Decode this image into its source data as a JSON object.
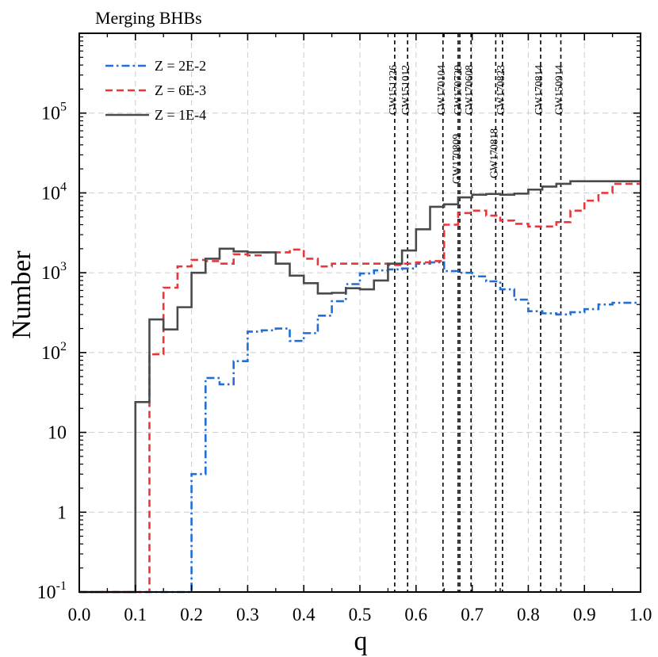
{
  "chart_data": {
    "type": "line",
    "title": "Merging BHBs",
    "xlabel": "q",
    "ylabel": "Number",
    "xlim": [
      0.0,
      1.0
    ],
    "ylim": [
      0.1,
      1000000
    ],
    "yscale": "log",
    "grid": true,
    "legend_position": "top-left",
    "xticks": [
      "0.0",
      "0.1",
      "0.2",
      "0.3",
      "0.4",
      "0.5",
      "0.6",
      "0.7",
      "0.8",
      "0.9",
      "1.0"
    ],
    "yticks": [
      {
        "value": 0.1,
        "base": "10",
        "exp": "-1"
      },
      {
        "value": 1,
        "base": "1",
        "exp": ""
      },
      {
        "value": 10,
        "base": "10",
        "exp": ""
      },
      {
        "value": 100,
        "base": "10",
        "exp": "2"
      },
      {
        "value": 1000,
        "base": "10",
        "exp": "3"
      },
      {
        "value": 10000,
        "base": "10",
        "exp": "4"
      },
      {
        "value": 100000,
        "base": "10",
        "exp": "5"
      }
    ],
    "bin_edges": [
      0.0,
      0.025,
      0.05,
      0.075,
      0.1,
      0.125,
      0.15,
      0.175,
      0.2,
      0.225,
      0.25,
      0.275,
      0.3,
      0.325,
      0.35,
      0.375,
      0.4,
      0.425,
      0.45,
      0.475,
      0.5,
      0.525,
      0.55,
      0.575,
      0.6,
      0.625,
      0.65,
      0.675,
      0.7,
      0.725,
      0.75,
      0.775,
      0.8,
      0.825,
      0.85,
      0.875,
      0.9,
      0.925,
      0.95,
      0.975,
      1.0
    ],
    "series": [
      {
        "name": "Z = 2E-2",
        "color": "#1f6fd6",
        "dash": "dashdot",
        "values": [
          0.1,
          0.1,
          0.1,
          0.1,
          0.1,
          0.1,
          0.1,
          0.1,
          3,
          48,
          40,
          78,
          183,
          190,
          200,
          140,
          175,
          290,
          440,
          720,
          980,
          1070,
          1100,
          1130,
          1300,
          1350,
          1050,
          1000,
          900,
          780,
          620,
          460,
          330,
          310,
          300,
          320,
          350,
          400,
          420,
          420
        ]
      },
      {
        "name": "Z = 6E-3",
        "color": "#e8363a",
        "dash": "dashed",
        "values": [
          0.1,
          0.1,
          0.1,
          0.1,
          0.1,
          95,
          650,
          1200,
          1450,
          1400,
          1300,
          1700,
          1650,
          1800,
          1800,
          1950,
          1500,
          1200,
          1300,
          1300,
          1300,
          1300,
          1250,
          1300,
          1350,
          1400,
          4000,
          5600,
          6000,
          5200,
          4500,
          4100,
          3800,
          3800,
          4300,
          6000,
          8000,
          10000,
          13000,
          13000
        ]
      },
      {
        "name": "Z = 1E-4",
        "color": "#4a4a4a",
        "dash": "solid",
        "values": [
          0.1,
          0.1,
          0.1,
          0.1,
          24,
          260,
          195,
          370,
          1000,
          1500,
          2000,
          1850,
          1800,
          1800,
          1300,
          920,
          740,
          550,
          560,
          640,
          620,
          800,
          1300,
          1900,
          3500,
          6700,
          7200,
          8800,
          9500,
          9700,
          9500,
          9800,
          11000,
          12000,
          13000,
          14000,
          14000,
          14000,
          14000,
          14000
        ]
      }
    ],
    "events": [
      {
        "name": "GW151226",
        "q": 0.562,
        "label_row": 1
      },
      {
        "name": "GW151012",
        "q": 0.585,
        "label_row": 1
      },
      {
        "name": "GW170104",
        "q": 0.648,
        "label_row": 1
      },
      {
        "name": "GW170809",
        "q": 0.675,
        "label_row": 3
      },
      {
        "name": "GW170729",
        "q": 0.678,
        "label_row": 1
      },
      {
        "name": "GW170608",
        "q": 0.698,
        "label_row": 1
      },
      {
        "name": "GW170818",
        "q": 0.742,
        "label_row": 2
      },
      {
        "name": "GW170823",
        "q": 0.754,
        "label_row": 1
      },
      {
        "name": "GW170814",
        "q": 0.822,
        "label_row": 1
      },
      {
        "name": "GW150914",
        "q": 0.858,
        "label_row": 1
      }
    ]
  }
}
